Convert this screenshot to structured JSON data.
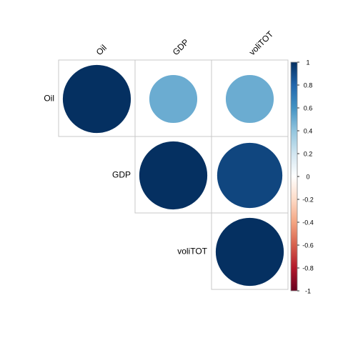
{
  "chart_data": {
    "type": "heatmap",
    "variables": [
      "Oil",
      "GDP",
      "voliTOT"
    ],
    "layout": "upper-triangle",
    "shape": "circle",
    "values": [
      [
        1.0,
        0.5,
        0.5
      ],
      [
        null,
        1.0,
        0.92
      ],
      [
        null,
        null,
        1.0
      ]
    ],
    "colorbar": {
      "range": [
        -1,
        1
      ],
      "ticks": [
        "1",
        "0.8",
        "0.6",
        "0.4",
        "0.2",
        "0",
        "-0.2",
        "-0.4",
        "-0.6",
        "-0.8",
        "-1"
      ],
      "colors": [
        "#67001F",
        "#B2182B",
        "#D6604D",
        "#F4A582",
        "#FDDBC7",
        "#FFFFFF",
        "#D1E5F0",
        "#92C5DE",
        "#4393C3",
        "#2166AC",
        "#053061"
      ]
    },
    "grid": true
  }
}
